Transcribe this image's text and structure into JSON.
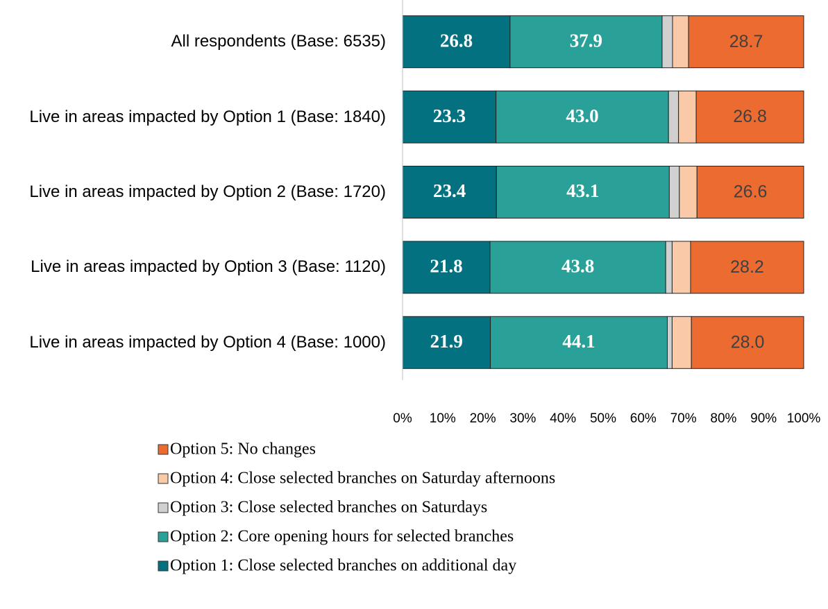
{
  "chart_data": {
    "type": "stacked_bar_horizontal",
    "categories": [
      "All respondents (Base: 6535)",
      "Live in areas impacted by Option 1 (Base: 1840)",
      "Live in areas impacted by Option 2 (Base: 1720)",
      "Live in areas impacted by Option 3 (Base: 1120)",
      "Live in areas impacted by Option 4 (Base: 1000)"
    ],
    "series": [
      {
        "name": "Option 1: Close selected branches on additional day",
        "color": "#037180",
        "values": [
          26.8,
          23.3,
          23.4,
          21.8,
          21.9
        ],
        "value_labels": [
          "26.8",
          "23.3",
          "23.4",
          "21.8",
          "21.9"
        ]
      },
      {
        "name": "Option 2: Core opening hours for selected branches",
        "color": "#2aa198",
        "values": [
          37.9,
          43.0,
          43.1,
          43.8,
          44.1
        ],
        "value_labels": [
          "37.9",
          "43.0",
          "43.1",
          "43.8",
          "44.1"
        ]
      },
      {
        "name": "Option 3: Close selected branches on Saturdays",
        "color": "#d0d0d0",
        "values": [
          2.6,
          2.5,
          2.5,
          1.6,
          1.2
        ]
      },
      {
        "name": "Option 4: Close selected branches on Saturday afternoons",
        "color": "#f9c9a8",
        "values": [
          4.0,
          4.4,
          4.4,
          4.6,
          4.8
        ]
      },
      {
        "name": "Option 5: No changes",
        "color": "#eb6b30",
        "values": [
          28.7,
          26.8,
          26.6,
          28.2,
          28.0
        ],
        "value_labels": [
          "28.7",
          "26.8",
          "26.6",
          "28.2",
          "28.0"
        ]
      }
    ],
    "xlim": [
      0,
      100
    ],
    "xticks": [
      {
        "value": 0,
        "label": "0%"
      },
      {
        "value": 10,
        "label": "10%"
      },
      {
        "value": 20,
        "label": "20%"
      },
      {
        "value": 30,
        "label": "30%"
      },
      {
        "value": 40,
        "label": "40%"
      },
      {
        "value": 50,
        "label": "50%"
      },
      {
        "value": 60,
        "label": "60%"
      },
      {
        "value": 70,
        "label": "70%"
      },
      {
        "value": 80,
        "label": "80%"
      },
      {
        "value": 90,
        "label": "90%"
      },
      {
        "value": 100,
        "label": "100%"
      }
    ],
    "legend": "bottom"
  }
}
